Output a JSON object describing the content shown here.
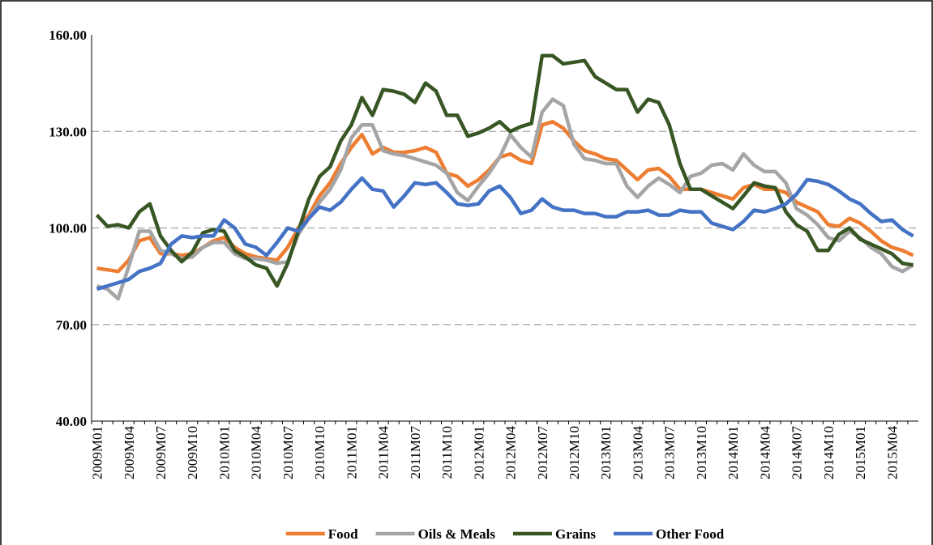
{
  "chart_data": {
    "type": "line",
    "categories": [
      "2009M01",
      null,
      null,
      "2009M04",
      null,
      null,
      "2009M07",
      null,
      null,
      "2009M10",
      null,
      null,
      "2010M01",
      null,
      null,
      "2010M04",
      null,
      null,
      "2010M07",
      null,
      null,
      "2010M10",
      null,
      null,
      "2011M01",
      null,
      null,
      "2011M04",
      null,
      null,
      "2011M07",
      null,
      null,
      "2011M10",
      null,
      null,
      "2012M01",
      null,
      null,
      "2012M04",
      null,
      null,
      "2012M07",
      null,
      null,
      "2012M10",
      null,
      null,
      "2013M01",
      null,
      null,
      "2013M04",
      null,
      null,
      "2013M07",
      null,
      null,
      "2013M10",
      null,
      null,
      "2014M01",
      null,
      null,
      "2014M04",
      null,
      null,
      "2014M07",
      null,
      null,
      "2014M10",
      null,
      null,
      "2015M01",
      null,
      null,
      "2015M04",
      null,
      null
    ],
    "series": [
      {
        "name": "Food",
        "color": "#ed7d31",
        "values": [
          87.5,
          87,
          86.5,
          90,
          96,
          97,
          92,
          92,
          91.5,
          92,
          94,
          96,
          97,
          94,
          92,
          91,
          90.5,
          90,
          94,
          100,
          104,
          110,
          114,
          120,
          125,
          129,
          123,
          125,
          123.5,
          123.5,
          124,
          125,
          123.5,
          117,
          116,
          113,
          115,
          118,
          122,
          123,
          121,
          120,
          132,
          133,
          131,
          127,
          124,
          123,
          121.5,
          121,
          118,
          115,
          118,
          118.5,
          116,
          112,
          112,
          112,
          111,
          110,
          109,
          112.5,
          113.5,
          112,
          112,
          111,
          108,
          106.5,
          105,
          101,
          100.5,
          103,
          101.5,
          99,
          96,
          94,
          93,
          91.5
        ]
      },
      {
        "name": "Oils & Meals",
        "color": "#a5a5a5",
        "values": [
          82,
          81,
          78,
          88,
          99,
          99,
          93,
          92,
          90.5,
          91,
          94,
          95.5,
          95.5,
          92,
          90.5,
          90.5,
          90,
          89,
          89.5,
          98,
          103,
          108,
          112,
          118,
          128,
          132,
          132,
          124,
          123,
          122.5,
          121.5,
          120.5,
          119.5,
          117,
          111,
          108.5,
          113,
          117,
          122,
          129,
          125,
          122,
          136,
          140,
          138,
          126,
          121.5,
          121,
          120,
          120,
          113,
          109.5,
          113,
          115.5,
          113.5,
          111,
          116,
          117,
          119.5,
          120,
          118,
          123,
          119.5,
          117.5,
          117.5,
          114,
          106,
          104,
          101,
          97,
          96,
          99,
          97,
          94,
          92,
          88,
          86.5,
          88.5
        ]
      },
      {
        "name": "Grains",
        "color": "#375623",
        "values": [
          104,
          100.5,
          101,
          100,
          105,
          107.5,
          97.5,
          93,
          89.5,
          92.5,
          98.5,
          99.5,
          99,
          93,
          91,
          88.5,
          87.5,
          82,
          89,
          99,
          109,
          116,
          119,
          127,
          132,
          140.5,
          135,
          143,
          142.5,
          141.5,
          139,
          145,
          142.5,
          135,
          135,
          128.5,
          129.5,
          131,
          133,
          130,
          131.5,
          132.5,
          153.5,
          153.5,
          151,
          151.5,
          152,
          147,
          145,
          143,
          143,
          136,
          140,
          139,
          132,
          120,
          112,
          112,
          110,
          108,
          106,
          110,
          114,
          113,
          112.5,
          105,
          101,
          99,
          93,
          93,
          98,
          100,
          96.5,
          95,
          93.5,
          92,
          89,
          88.5
        ]
      },
      {
        "name": "Other Food",
        "color": "#4472c4",
        "values": [
          81,
          82,
          83,
          84,
          86.5,
          87.5,
          89,
          95,
          97.5,
          97,
          97.5,
          97.5,
          102.5,
          100,
          95,
          94,
          91.5,
          95.5,
          100,
          99,
          103,
          106.5,
          105.5,
          108,
          112,
          115.5,
          112,
          111.5,
          106.5,
          110,
          114,
          113.5,
          114,
          111,
          107.5,
          107,
          107.5,
          111.5,
          113,
          109.5,
          104.5,
          105.5,
          109,
          106.5,
          105.5,
          105.5,
          104.5,
          104.5,
          103.5,
          103.5,
          105,
          105,
          105.5,
          104,
          104,
          105.5,
          105,
          105,
          101.5,
          100.5,
          99.5,
          102,
          105.5,
          105,
          106,
          107.5,
          110.5,
          115,
          114.5,
          113.5,
          111.5,
          109,
          107.5,
          104.5,
          102,
          102.5,
          99.5,
          97.5
        ]
      }
    ],
    "ylim": [
      40,
      160
    ],
    "yticks": [
      {
        "value": 40,
        "label": "40.00"
      },
      {
        "value": 70,
        "label": "70.00"
      },
      {
        "value": 100,
        "label": "100.00"
      },
      {
        "value": 130,
        "label": "130.00"
      },
      {
        "value": 160,
        "label": "160.00"
      }
    ],
    "grid": true,
    "legend": "bottom"
  }
}
